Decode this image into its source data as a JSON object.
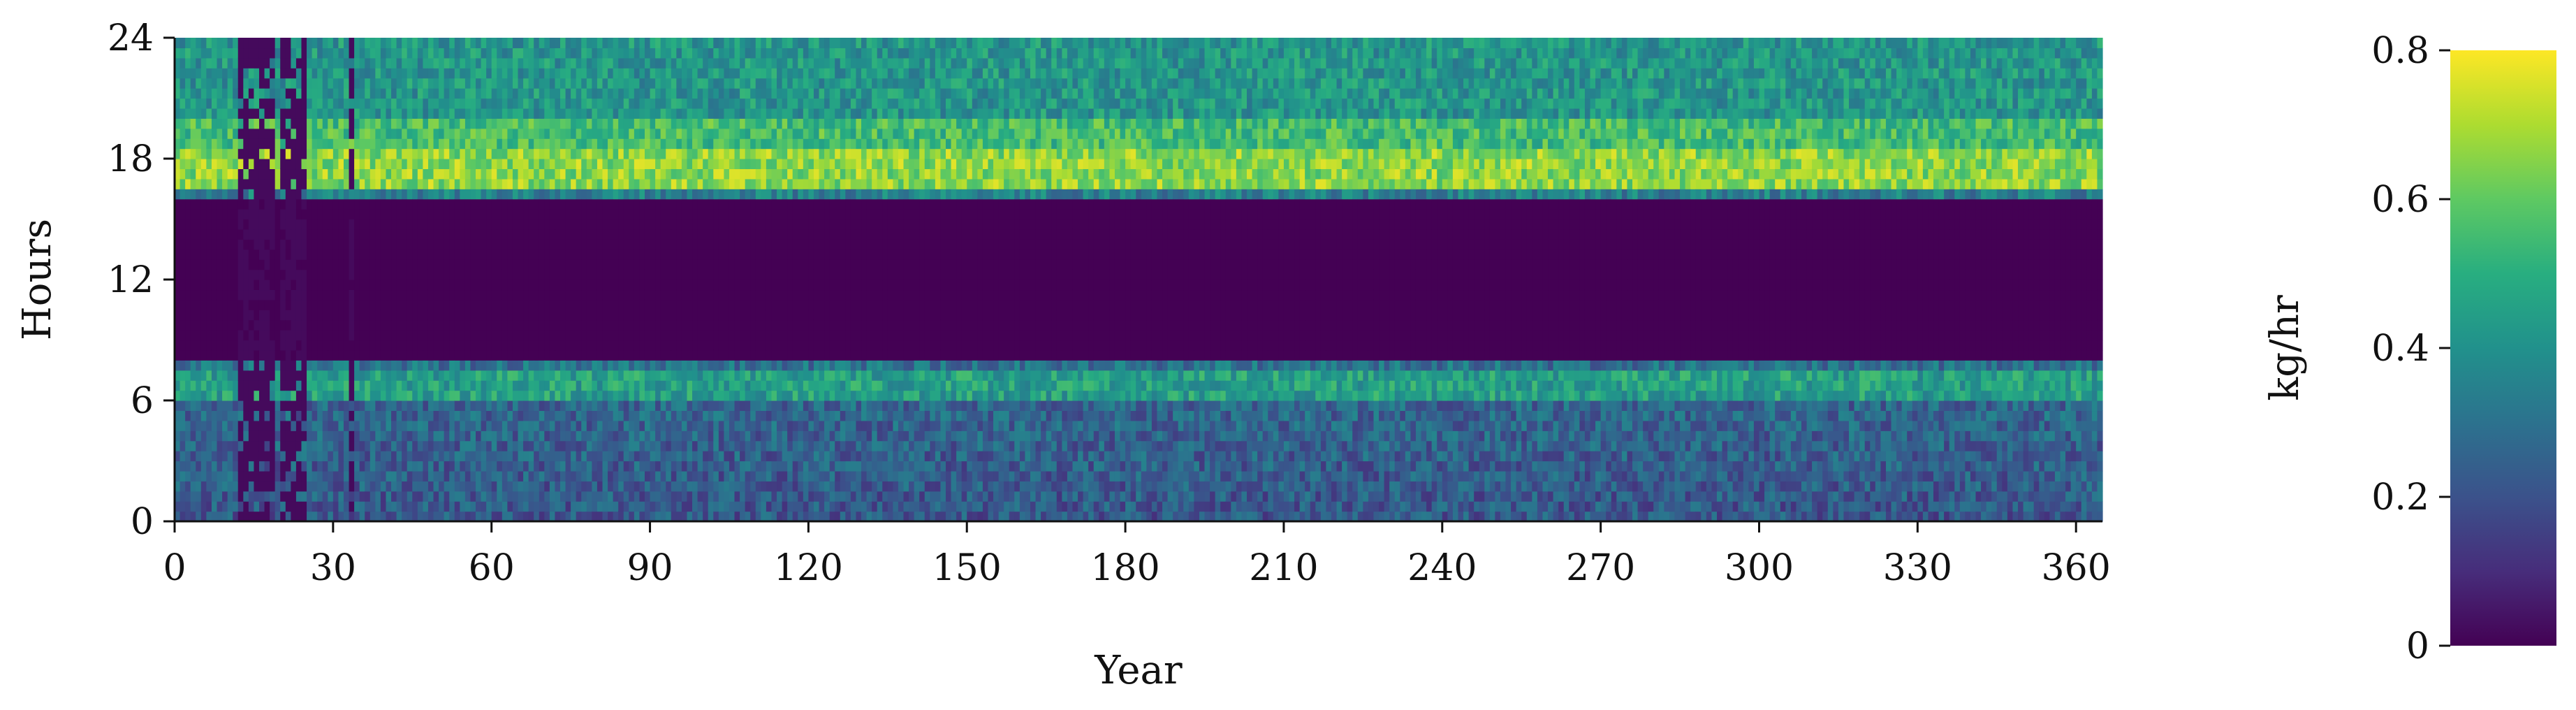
{
  "chart_data": {
    "type": "heatmap",
    "title": "",
    "xlabel": "Year",
    "ylabel": "Hours",
    "xlim": [
      0,
      365
    ],
    "ylim": [
      0,
      24
    ],
    "x_ticks": [
      "0",
      "30",
      "60",
      "90",
      "120",
      "150",
      "180",
      "210",
      "240",
      "270",
      "300",
      "330",
      "360"
    ],
    "y_ticks": [
      "0",
      "6",
      "12",
      "18",
      "24"
    ],
    "colorbar": {
      "label": "kg/hr",
      "range": [
        0,
        0.8
      ],
      "ticks": [
        "0",
        "0.2",
        "0.4",
        "0.6",
        "0.8"
      ],
      "colormap": "viridis"
    },
    "grid": false,
    "bands": [
      {
        "hours": [
          0,
          6
        ],
        "typical_value": 0.25
      },
      {
        "hours": [
          6,
          8
        ],
        "typical_value": 0.45
      },
      {
        "hours": [
          8,
          16
        ],
        "typical_value": 0.0
      },
      {
        "hours": [
          16,
          19
        ],
        "typical_value": 0.65
      },
      {
        "hours": [
          19,
          24
        ],
        "typical_value": 0.4
      }
    ]
  },
  "colors": {
    "viridis_low": "#440154",
    "viridis_mid": "#21918c",
    "viridis_high": "#fde725"
  }
}
